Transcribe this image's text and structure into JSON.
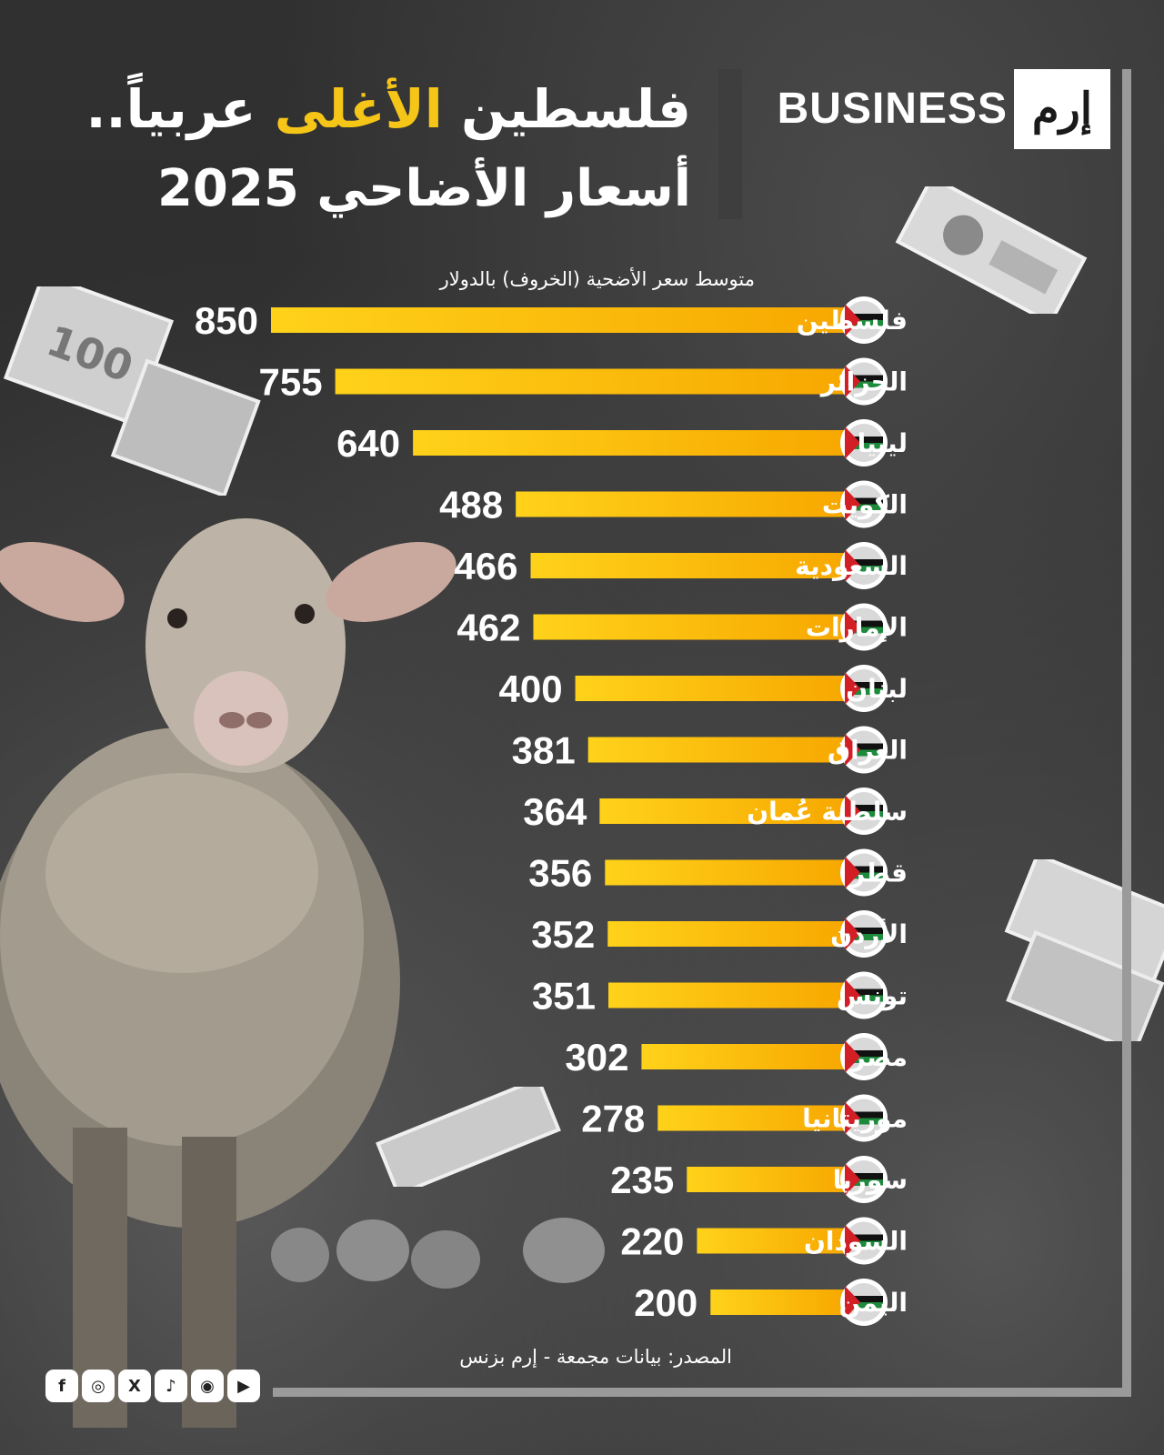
{
  "brand": {
    "logo_text": "إرم",
    "name": "BUSINESS"
  },
  "title": {
    "line1_part1": "فلسطين",
    "line1_highlight": "الأغلى",
    "line1_part2": "عربياً..",
    "line2": "أسعار الأضاحي 2025"
  },
  "subtitle": "متوسط سعر الأضحية (الخروف) بالدولار",
  "source": "المصدر: بيانات مجمعة - إرم بزنس",
  "colors": {
    "bar": "#f7b500",
    "bar_light": "#ffd21a",
    "highlight": "#f5c518",
    "background": "#2a2a2a"
  },
  "social": [
    {
      "name": "facebook-icon",
      "glyph": "f"
    },
    {
      "name": "instagram-icon",
      "glyph": "◎"
    },
    {
      "name": "x-icon",
      "glyph": "X"
    },
    {
      "name": "tiktok-icon",
      "glyph": "♪"
    },
    {
      "name": "snapchat-icon",
      "glyph": "◉"
    },
    {
      "name": "youtube-icon",
      "glyph": "▶"
    }
  ],
  "chart_data": {
    "type": "bar",
    "orientation": "horizontal",
    "categories": [
      "فلسطين",
      "الجزائر",
      "ليبيا",
      "الكويت",
      "السعودية",
      "الإمارات",
      "لبنان",
      "العراق",
      "سلطنة عُمان",
      "قطر",
      "الأردن",
      "تونس",
      "مصر",
      "موريتانيا",
      "سوريا",
      "السودان",
      "اليمن"
    ],
    "values": [
      850,
      755,
      640,
      488,
      466,
      462,
      400,
      381,
      364,
      356,
      352,
      351,
      302,
      278,
      235,
      220,
      200
    ],
    "flags": [
      "palestine-flag-icon",
      "algeria-flag-icon",
      "libya-flag-icon",
      "kuwait-flag-icon",
      "saudi-flag-icon",
      "uae-flag-icon",
      "lebanon-flag-icon",
      "iraq-flag-icon",
      "oman-flag-icon",
      "qatar-flag-icon",
      "jordan-flag-icon",
      "tunisia-flag-icon",
      "egypt-flag-icon",
      "mauritania-flag-icon",
      "syria-flag-icon",
      "sudan-flag-icon",
      "yemen-flag-icon"
    ],
    "ylabel": "متوسط سعر الأضحية (الخروف) بالدولار",
    "xlim": [
      0,
      850
    ],
    "grid": false,
    "legend": "none"
  }
}
